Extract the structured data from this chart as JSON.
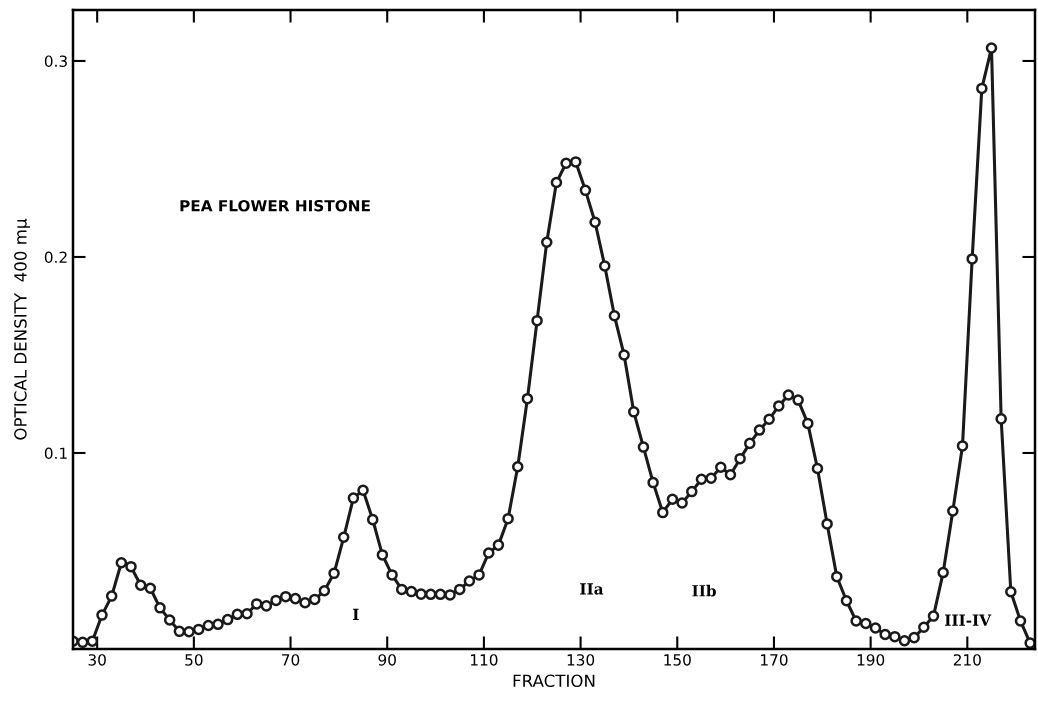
{
  "chart_data": {
    "type": "line",
    "title": "PEA FLOWER HISTONE",
    "xlabel": "FRACTION",
    "ylabel": "OPTICAL DENSITY  400 mμ",
    "x": [
      25,
      27,
      29,
      31,
      33,
      35,
      37,
      39,
      41,
      43,
      45,
      47,
      49,
      51,
      53,
      55,
      57,
      59,
      61,
      63,
      65,
      67,
      69,
      71,
      73,
      75,
      77,
      79,
      81,
      83,
      85,
      87,
      89,
      91,
      93,
      95,
      97,
      99,
      101,
      103,
      105,
      107,
      109,
      111,
      113,
      115,
      117,
      119,
      121,
      123,
      125,
      127,
      129,
      131,
      133,
      135,
      137,
      139,
      141,
      143,
      145,
      147,
      149,
      151,
      153,
      155,
      157,
      159,
      161,
      163,
      165,
      167,
      169,
      171,
      173,
      175,
      177,
      179,
      181,
      183,
      185,
      187,
      189,
      191,
      193,
      195,
      197,
      199,
      201,
      203,
      205,
      207,
      209,
      211,
      213,
      215,
      217,
      219,
      221,
      223
    ],
    "series": [
      {
        "color": "#1a1a1a",
        "values": [
          0.004,
          0.0034,
          0.004,
          0.0173,
          0.027,
          0.044,
          0.042,
          0.0325,
          0.031,
          0.021,
          0.0148,
          0.009,
          0.0088,
          0.01,
          0.012,
          0.0126,
          0.015,
          0.0177,
          0.018,
          0.023,
          0.022,
          0.0248,
          0.0267,
          0.0257,
          0.0236,
          0.0253,
          0.0297,
          0.0386,
          0.057,
          0.077,
          0.081,
          0.066,
          0.048,
          0.0378,
          0.0304,
          0.0293,
          0.028,
          0.0279,
          0.0279,
          0.0276,
          0.0304,
          0.0347,
          0.0378,
          0.049,
          0.053,
          0.0665,
          0.093,
          0.1277,
          0.1675,
          0.2075,
          0.238,
          0.2478,
          0.2485,
          0.234,
          0.2177,
          0.1954,
          0.17,
          0.15,
          0.121,
          0.103,
          0.0849,
          0.0696,
          0.0764,
          0.0745,
          0.0803,
          0.0866,
          0.0871,
          0.0927,
          0.0889,
          0.0971,
          0.1049,
          0.1117,
          0.1172,
          0.124,
          0.1296,
          0.127,
          0.1151,
          0.0921,
          0.0638,
          0.0369,
          0.0246,
          0.0143,
          0.013,
          0.0107,
          0.0074,
          0.0063,
          0.0042,
          0.0058,
          0.0111,
          0.0168,
          0.039,
          0.0704,
          0.1036,
          0.199,
          0.286,
          0.3066,
          0.1174,
          0.0292,
          0.0143,
          0.003
        ]
      }
    ],
    "marker": "circle",
    "line_style": "solid",
    "xlim": [
      25,
      224
    ],
    "xticks": [
      30,
      50,
      70,
      90,
      110,
      130,
      150,
      170,
      190,
      210
    ],
    "ylim": [
      0,
      0.326
    ],
    "yticks": [
      {
        "value": 0.1,
        "label": "0.1"
      },
      {
        "value": 0.2,
        "label": "0.2"
      },
      {
        "value": 0.3,
        "label": "0.3"
      }
    ],
    "grid": false,
    "legend": false,
    "annotations": [
      "I",
      "IIa",
      "IIb",
      "III-IV"
    ]
  }
}
